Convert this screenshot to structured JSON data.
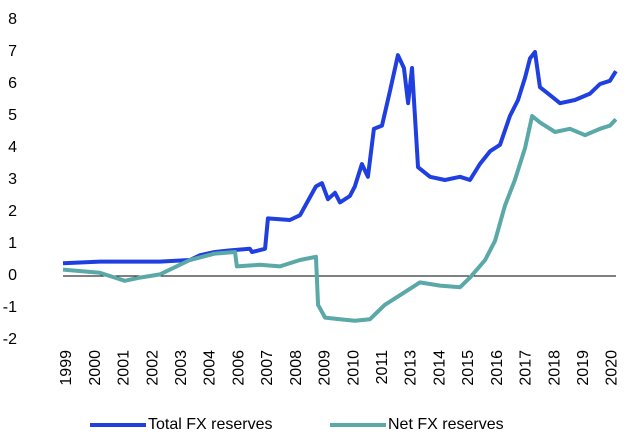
{
  "chart_data": {
    "type": "line",
    "xlim": [
      1998.85,
      2020.11
    ],
    "ylim": [
      -2,
      8
    ],
    "yticks": [
      -2,
      -1,
      0,
      1,
      2,
      3,
      4,
      5,
      6,
      7,
      8
    ],
    "xticks": [
      {
        "value": 1999.0,
        "label": "1999"
      },
      {
        "value": 2000.1,
        "label": "2000"
      },
      {
        "value": 2001.2,
        "label": "2001"
      },
      {
        "value": 2002.3,
        "label": "2002"
      },
      {
        "value": 2003.4,
        "label": "2003"
      },
      {
        "value": 2004.5,
        "label": "2004"
      },
      {
        "value": 2005.6,
        "label": "2006"
      },
      {
        "value": 2006.7,
        "label": "2007"
      },
      {
        "value": 2007.8,
        "label": "2008"
      },
      {
        "value": 2008.9,
        "label": "2009"
      },
      {
        "value": 2010.0,
        "label": "2010"
      },
      {
        "value": 2011.1,
        "label": "2011"
      },
      {
        "value": 2012.2,
        "label": "2013"
      },
      {
        "value": 2013.3,
        "label": "2014"
      },
      {
        "value": 2014.4,
        "label": "2015"
      },
      {
        "value": 2015.5,
        "label": "2016"
      },
      {
        "value": 2016.6,
        "label": "2017"
      },
      {
        "value": 2017.7,
        "label": "2018"
      },
      {
        "value": 2018.8,
        "label": "2019"
      },
      {
        "value": 2019.9,
        "label": "2020"
      }
    ],
    "series": [
      {
        "name": "Total FX reserves",
        "color": "#1f3fe0",
        "x": [
          1998.85,
          2000.26,
          2001.41,
          2002.56,
          2003.71,
          2004.1,
          2004.67,
          2005.25,
          2006.01,
          2006.09,
          2006.59,
          2006.7,
          2007.54,
          2007.93,
          2008.54,
          2008.77,
          2009.0,
          2009.27,
          2009.46,
          2009.84,
          2010.03,
          2010.3,
          2010.53,
          2010.76,
          2011.07,
          2011.38,
          2011.68,
          2011.91,
          2012.07,
          2012.22,
          2012.45,
          2012.91,
          2013.48,
          2014.06,
          2014.44,
          2014.82,
          2015.21,
          2015.59,
          2015.97,
          2016.28,
          2016.55,
          2016.74,
          2016.93,
          2017.12,
          2017.43,
          2017.89,
          2018.46,
          2019.04,
          2019.42,
          2019.8,
          2020.03
        ],
        "values": [
          0.4,
          0.45,
          0.45,
          0.45,
          0.5,
          0.65,
          0.75,
          0.8,
          0.85,
          0.75,
          0.85,
          1.8,
          1.75,
          1.9,
          2.8,
          2.9,
          2.4,
          2.6,
          2.3,
          2.5,
          2.8,
          3.5,
          3.1,
          4.6,
          4.7,
          5.8,
          6.9,
          6.5,
          5.4,
          6.5,
          3.4,
          3.1,
          3.0,
          3.1,
          3.0,
          3.5,
          3.9,
          4.1,
          5.0,
          5.5,
          6.2,
          6.8,
          7.0,
          5.9,
          5.7,
          5.4,
          5.5,
          5.7,
          6.0,
          6.1,
          6.4
        ]
      },
      {
        "name": "Net FX reserves",
        "color": "#5aa8a8",
        "x": [
          1998.85,
          2000.26,
          2000.84,
          2001.22,
          2001.8,
          2002.56,
          2003.71,
          2004.67,
          2005.44,
          2005.51,
          2006.39,
          2007.16,
          2007.93,
          2008.54,
          2008.62,
          2008.89,
          2009.46,
          2010.03,
          2010.61,
          2011.18,
          2011.76,
          2012.52,
          2013.29,
          2014.06,
          2014.44,
          2015.02,
          2015.4,
          2015.78,
          2016.16,
          2016.55,
          2016.82,
          2017.12,
          2017.7,
          2018.27,
          2018.85,
          2019.42,
          2019.8,
          2020.03
        ],
        "values": [
          0.2,
          0.1,
          -0.05,
          -0.15,
          -0.05,
          0.05,
          0.5,
          0.7,
          0.75,
          0.3,
          0.35,
          0.3,
          0.5,
          0.6,
          -0.9,
          -1.3,
          -1.35,
          -1.4,
          -1.35,
          -0.9,
          -0.6,
          -0.2,
          -0.3,
          -0.35,
          -0.05,
          0.5,
          1.1,
          2.2,
          3.0,
          4.0,
          5.0,
          4.8,
          4.5,
          4.6,
          4.4,
          4.6,
          4.7,
          4.9
        ]
      }
    ]
  }
}
